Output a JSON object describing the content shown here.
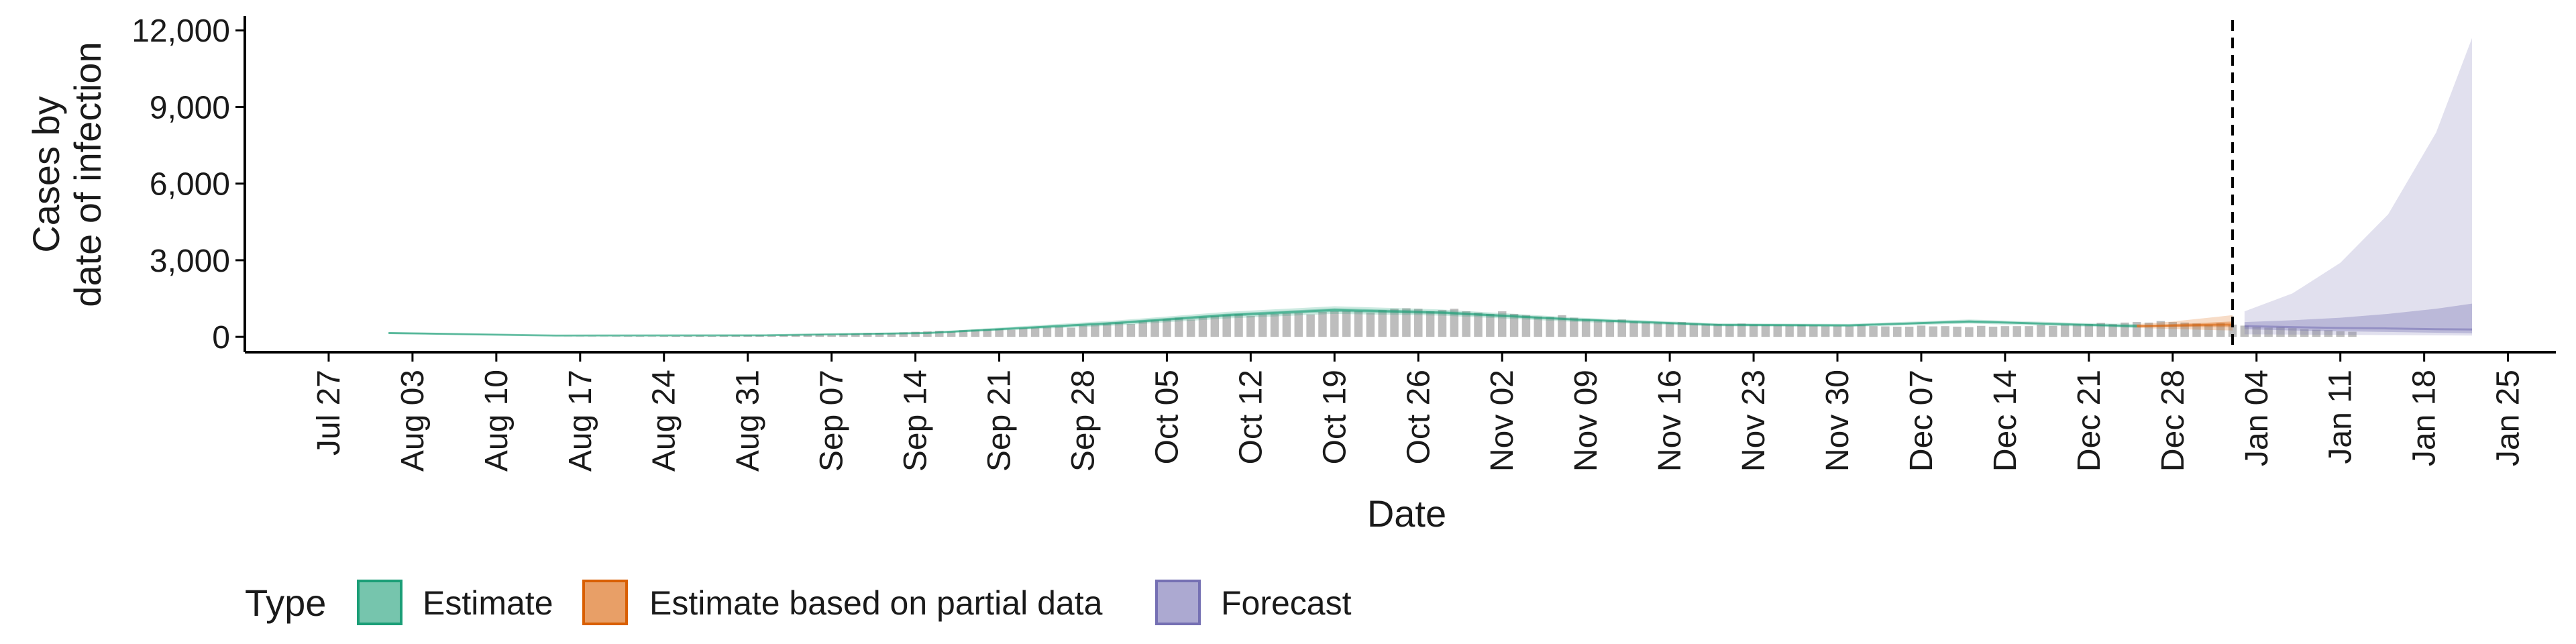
{
  "chart_data": {
    "type": "area",
    "ylabel_lines": [
      "Cases by",
      "date of infection"
    ],
    "xlabel": "Date",
    "ylim": [
      -600,
      12400
    ],
    "xlim": [
      "2020-07-20",
      "2021-01-29"
    ],
    "y_ticks": [
      0,
      3000,
      6000,
      9000,
      12000
    ],
    "y_tick_labels": [
      "0",
      "3,000",
      "6,000",
      "9,000",
      "12,000"
    ],
    "x_ticks": [
      "2020-07-27",
      "2020-08-03",
      "2020-08-10",
      "2020-08-17",
      "2020-08-24",
      "2020-08-31",
      "2020-09-07",
      "2020-09-14",
      "2020-09-21",
      "2020-09-28",
      "2020-10-05",
      "2020-10-12",
      "2020-10-19",
      "2020-10-26",
      "2020-11-02",
      "2020-11-09",
      "2020-11-16",
      "2020-11-23",
      "2020-11-30",
      "2020-12-07",
      "2020-12-14",
      "2020-12-21",
      "2020-12-28",
      "2021-01-04",
      "2021-01-11",
      "2021-01-18",
      "2021-01-25"
    ],
    "x_tick_labels": [
      "Jul 27",
      "Aug 03",
      "Aug 10",
      "Aug 17",
      "Aug 24",
      "Aug 31",
      "Sep 07",
      "Sep 14",
      "Sep 21",
      "Sep 28",
      "Oct 05",
      "Oct 12",
      "Oct 19",
      "Oct 26",
      "Nov 02",
      "Nov 09",
      "Nov 16",
      "Nov 23",
      "Nov 30",
      "Dec 07",
      "Dec 14",
      "Dec 21",
      "Dec 28",
      "Jan 04",
      "Jan 11",
      "Jan 18",
      "Jan 25"
    ],
    "forecast_start": "2021-01-02",
    "legend": {
      "title": "Type",
      "placement": "bottom-left",
      "items": [
        {
          "label": "Estimate",
          "color": "#1b9e77"
        },
        {
          "label": "Estimate based on partial data",
          "color": "#d95f02"
        },
        {
          "label": "Forecast",
          "color": "#7570b3"
        }
      ]
    },
    "colors": {
      "bars": "#bdbdbd",
      "estimate": "#1b9e77",
      "partial": "#d95f02",
      "forecast": "#7570b3"
    },
    "bars": {
      "start": "2020-08-15",
      "values": [
        5,
        8,
        10,
        12,
        10,
        15,
        18,
        20,
        15,
        25,
        30,
        35,
        40,
        30,
        45,
        50,
        55,
        60,
        45,
        70,
        80,
        90,
        100,
        80,
        120,
        130,
        150,
        160,
        140,
        180,
        200,
        220,
        240,
        200,
        260,
        280,
        300,
        320,
        280,
        340,
        360,
        380,
        400,
        360,
        440,
        480,
        520,
        560,
        500,
        600,
        650,
        700,
        750,
        680,
        780,
        820,
        860,
        900,
        820,
        880,
        900,
        920,
        940,
        880,
        980,
        1000,
        1020,
        1000,
        950,
        1050,
        1100,
        1120,
        1100,
        1000,
        1050,
        1100,
        1000,
        950,
        900,
        1000,
        900,
        850,
        800,
        780,
        850,
        750,
        700,
        650,
        620,
        680,
        600,
        580,
        560,
        540,
        580,
        520,
        500,
        500,
        480,
        520,
        480,
        460,
        450,
        440,
        480,
        440,
        420,
        430,
        420,
        460,
        420,
        410,
        400,
        400,
        440,
        410,
        420,
        400,
        380,
        430,
        400,
        420,
        420,
        420,
        470,
        430,
        480,
        490,
        500,
        550,
        500,
        560,
        580,
        560,
        620,
        580,
        560,
        520,
        480,
        540,
        480,
        440,
        400,
        360,
        380,
        340,
        300,
        280,
        260,
        220,
        200
      ]
    },
    "series": [
      {
        "name": "Estimate",
        "x": [
          "2020-08-01",
          "2020-08-15",
          "2020-09-01",
          "2020-09-15",
          "2020-10-01",
          "2020-10-10",
          "2020-10-19",
          "2020-10-28",
          "2020-11-08",
          "2020-11-20",
          "2020-12-01",
          "2020-12-11",
          "2020-12-20",
          "2020-12-25"
        ],
        "median": [
          150,
          50,
          60,
          150,
          550,
          850,
          1050,
          950,
          680,
          470,
          450,
          600,
          480,
          420
        ],
        "lower90": [
          110,
          30,
          40,
          120,
          450,
          720,
          900,
          830,
          590,
          410,
          390,
          520,
          410,
          350
        ],
        "upper90": [
          190,
          70,
          80,
          190,
          650,
          980,
          1200,
          1070,
          760,
          530,
          510,
          680,
          550,
          500
        ],
        "lower50": [
          130,
          40,
          50,
          135,
          500,
          790,
          980,
          890,
          640,
          440,
          420,
          560,
          450,
          390
        ],
        "upper50": [
          170,
          60,
          70,
          165,
          600,
          910,
          1120,
          1010,
          720,
          500,
          480,
          640,
          510,
          455
        ]
      },
      {
        "name": "Estimate based on partial data",
        "x": [
          "2020-12-25",
          "2020-12-28",
          "2020-12-31",
          "2021-01-02"
        ],
        "median": [
          420,
          440,
          470,
          480
        ],
        "lower90": [
          350,
          310,
          270,
          250
        ],
        "upper90": [
          500,
          600,
          750,
          850
        ],
        "lower50": [
          390,
          390,
          380,
          380
        ],
        "upper50": [
          455,
          500,
          560,
          600
        ]
      },
      {
        "name": "Forecast",
        "x": [
          "2021-01-03",
          "2021-01-07",
          "2021-01-11",
          "2021-01-15",
          "2021-01-19",
          "2021-01-22"
        ],
        "median": [
          420,
          380,
          350,
          330,
          300,
          290
        ],
        "lower90": [
          100,
          90,
          80,
          70,
          60,
          50
        ],
        "upper90": [
          1000,
          1700,
          2900,
          4800,
          8000,
          11700
        ],
        "lower50": [
          300,
          250,
          220,
          190,
          160,
          140
        ],
        "upper50": [
          580,
          650,
          750,
          900,
          1100,
          1300
        ]
      }
    ]
  }
}
